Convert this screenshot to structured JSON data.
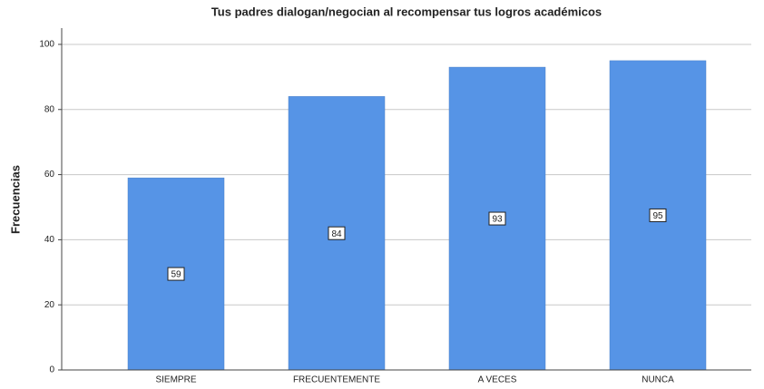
{
  "chart_data": {
    "type": "bar",
    "title": "Tus padres dialogan/negocian al recompensar tus logros académicos",
    "y_label": "Frecuencias",
    "categories": [
      "SIEMPRE",
      "FRECUENTEMENTE",
      "A VECES",
      "NUNCA"
    ],
    "values": [
      59,
      84,
      93,
      95
    ],
    "color": "#5694e6",
    "ylim": [
      0,
      105
    ],
    "yticks": [
      0,
      20,
      40,
      60,
      80,
      100
    ],
    "grid": true,
    "data_labels": true
  }
}
